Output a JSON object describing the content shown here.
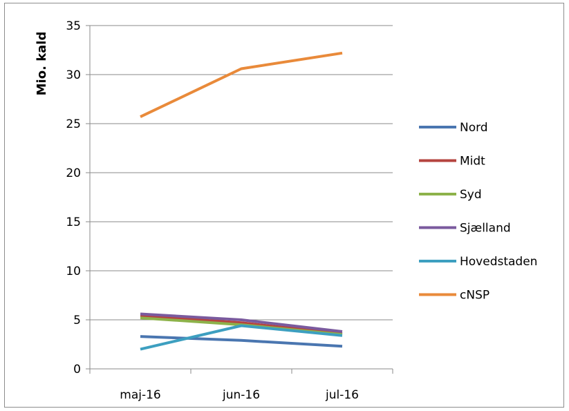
{
  "chart_data": {
    "type": "line",
    "title": "",
    "xlabel": "",
    "ylabel": "Mio. kald",
    "categories": [
      "maj-16",
      "jun-16",
      "jul-16"
    ],
    "ylim": [
      0,
      35
    ],
    "yticks": [
      0,
      5,
      10,
      15,
      20,
      25,
      30,
      35
    ],
    "grid": true,
    "legend_position": "right",
    "series": [
      {
        "name": "Nord",
        "color": "#4a76b0",
        "values": [
          3.3,
          2.9,
          2.3
        ]
      },
      {
        "name": "Midt",
        "color": "#b5443f",
        "values": [
          5.4,
          4.7,
          3.6
        ]
      },
      {
        "name": "Syd",
        "color": "#8db24a",
        "values": [
          5.2,
          4.5,
          3.5
        ]
      },
      {
        "name": "Sjælland",
        "color": "#7a5a9e",
        "values": [
          5.6,
          5.0,
          3.8
        ]
      },
      {
        "name": "Hovedstaden",
        "color": "#3d9fc0",
        "values": [
          2.0,
          4.4,
          3.4
        ]
      },
      {
        "name": "cNSP",
        "color": "#e98a3a",
        "values": [
          25.7,
          30.6,
          32.2
        ]
      }
    ]
  }
}
